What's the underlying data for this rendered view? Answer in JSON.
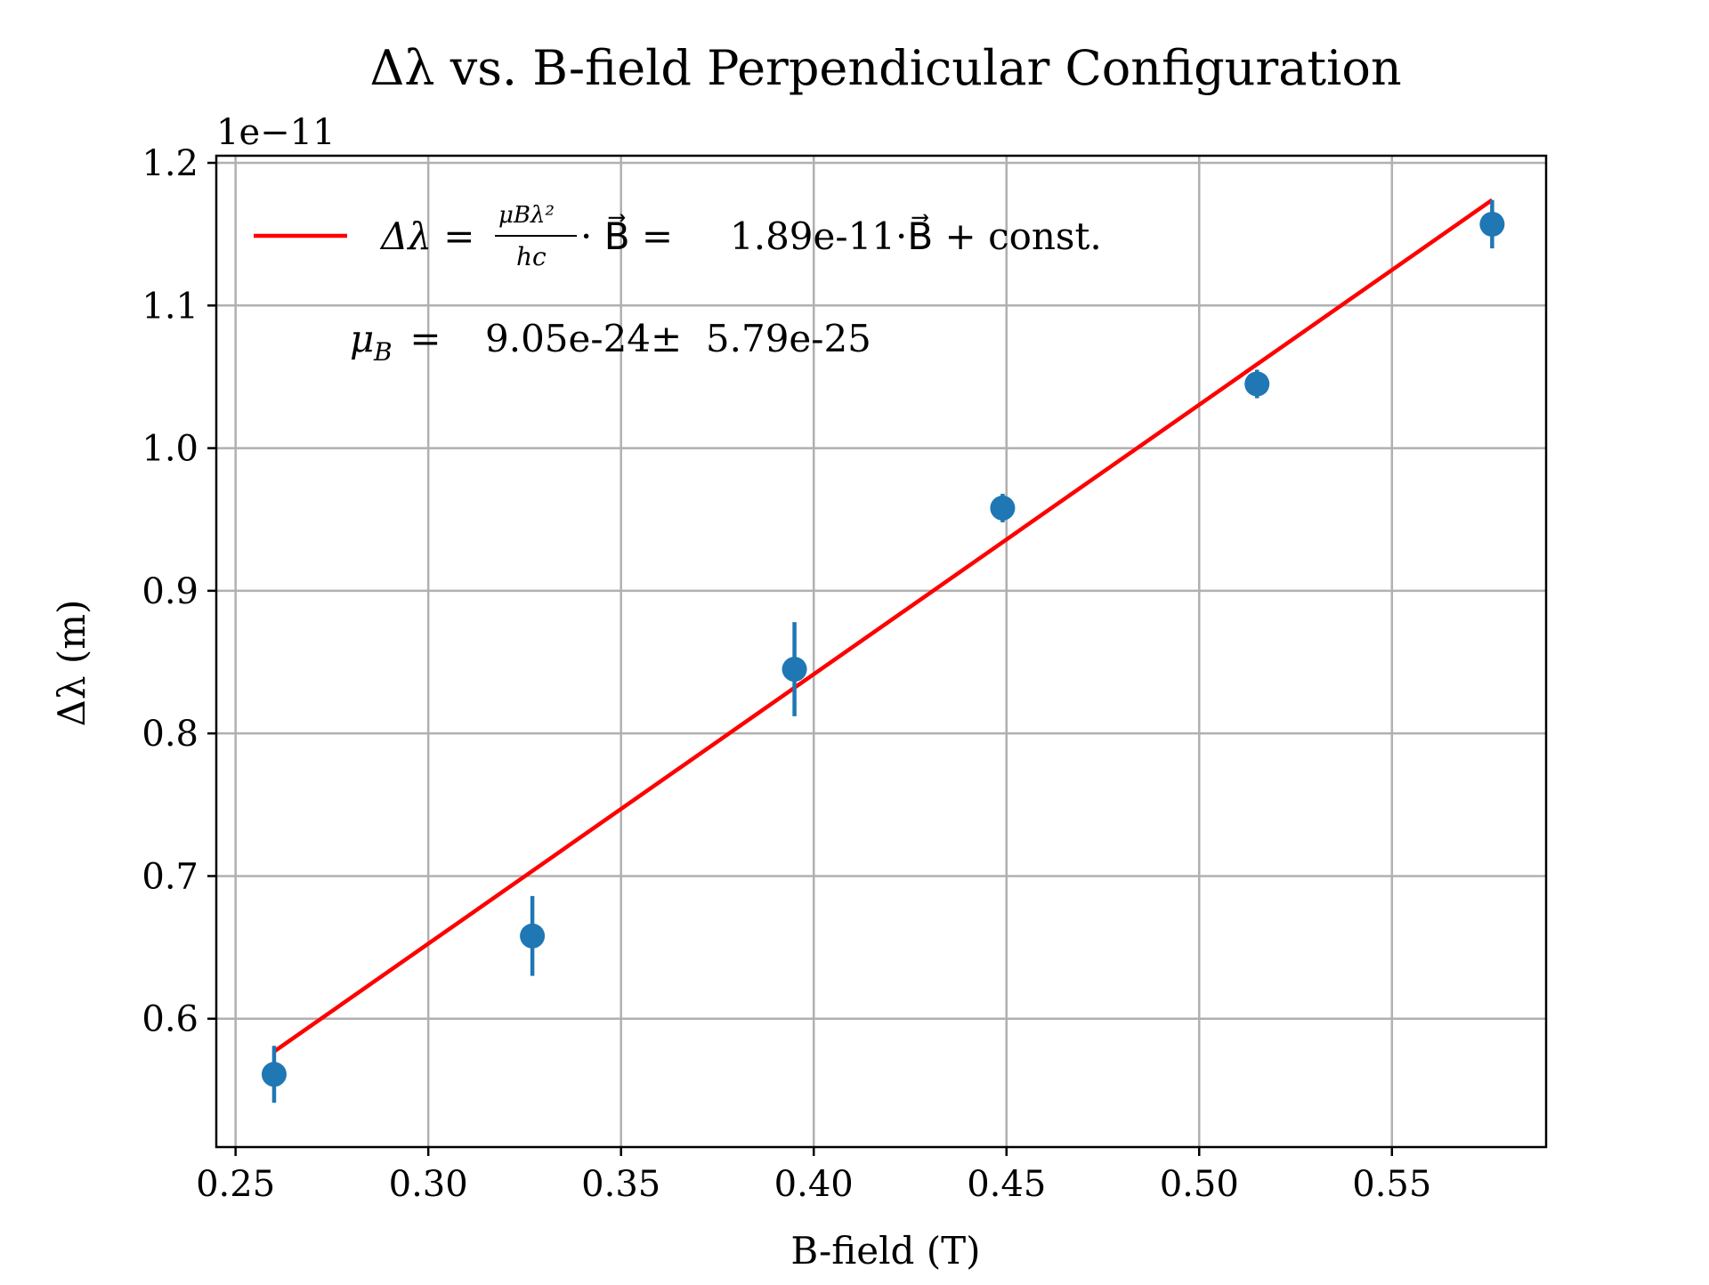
{
  "chart_data": {
    "type": "scatter",
    "title": "Δλ vs. B-field Perpendicular Configuration",
    "xlabel": "B-field (T)",
    "ylabel": "Δλ (m)",
    "y_offset_label": "1e−11",
    "xlim": [
      0.245,
      0.59
    ],
    "ylim": [
      0.51,
      1.205
    ],
    "y_scale_note": "×1e-11",
    "grid": true,
    "x_ticks": [
      "0.25",
      "0.30",
      "0.35",
      "0.40",
      "0.45",
      "0.50",
      "0.55"
    ],
    "x_tick_values": [
      0.25,
      0.3,
      0.35,
      0.4,
      0.45,
      0.5,
      0.55
    ],
    "y_ticks": [
      "0.6",
      "0.7",
      "0.8",
      "0.9",
      "1.0",
      "1.1",
      "1.2"
    ],
    "y_tick_values": [
      0.6,
      0.7,
      0.8,
      0.9,
      1.0,
      1.1,
      1.2
    ],
    "series": [
      {
        "kind": "errorbar",
        "color": "#1f77b4",
        "points": [
          {
            "x": 0.26,
            "y": 0.561,
            "err": 0.02
          },
          {
            "x": 0.327,
            "y": 0.658,
            "err": 0.028
          },
          {
            "x": 0.395,
            "y": 0.845,
            "err": 0.033
          },
          {
            "x": 0.449,
            "y": 0.958,
            "err": 0.01
          },
          {
            "x": 0.515,
            "y": 1.045,
            "err": 0.01
          },
          {
            "x": 0.576,
            "y": 1.157,
            "err": 0.017
          }
        ]
      },
      {
        "kind": "fit-line",
        "color": "#ff0000",
        "x": [
          0.26,
          0.576
        ],
        "y": [
          0.577,
          1.174
        ]
      }
    ],
    "legend": {
      "placement": "upper-left",
      "label_prefix": "Δλ = ",
      "label_fraction_num": "μBλ²",
      "label_fraction_den": "hc",
      "label_mid": " · B⃗ = ",
      "label_value": "1.89e-11·B⃗ + const."
    },
    "annotation": {
      "symbol": "μ",
      "subscript": "B",
      "equals": " =  ",
      "value": "9.05e-24±  5.79e-25"
    }
  }
}
